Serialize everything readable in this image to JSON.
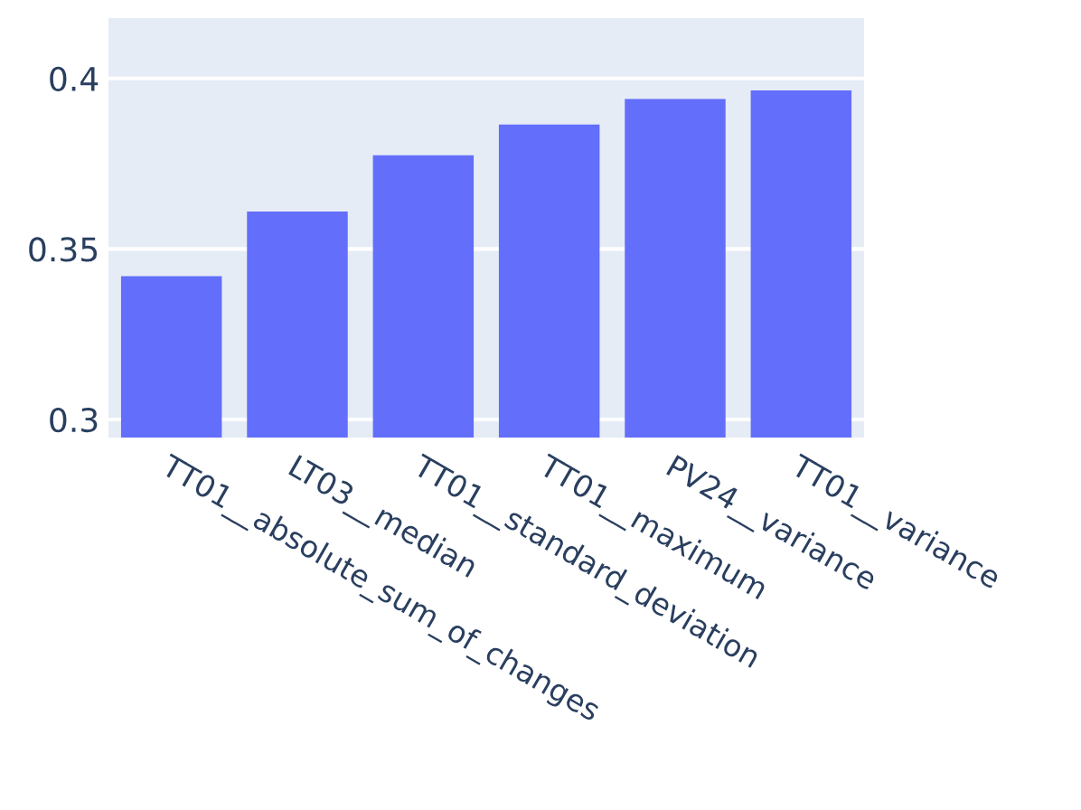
{
  "chart_data": {
    "type": "bar",
    "categories": [
      "TT01__absolute_sum_of_changes",
      "LT03__median",
      "TT01__standard_deviation",
      "TT01__maximum",
      "PV24__variance",
      "TT01__variance"
    ],
    "values": [
      0.342,
      0.361,
      0.3775,
      0.3865,
      0.394,
      0.3965
    ],
    "color": "#636efa",
    "ylim": [
      0.2947,
      0.4177
    ],
    "yticks": [
      0.3,
      0.35,
      0.4
    ],
    "grid": "y"
  }
}
